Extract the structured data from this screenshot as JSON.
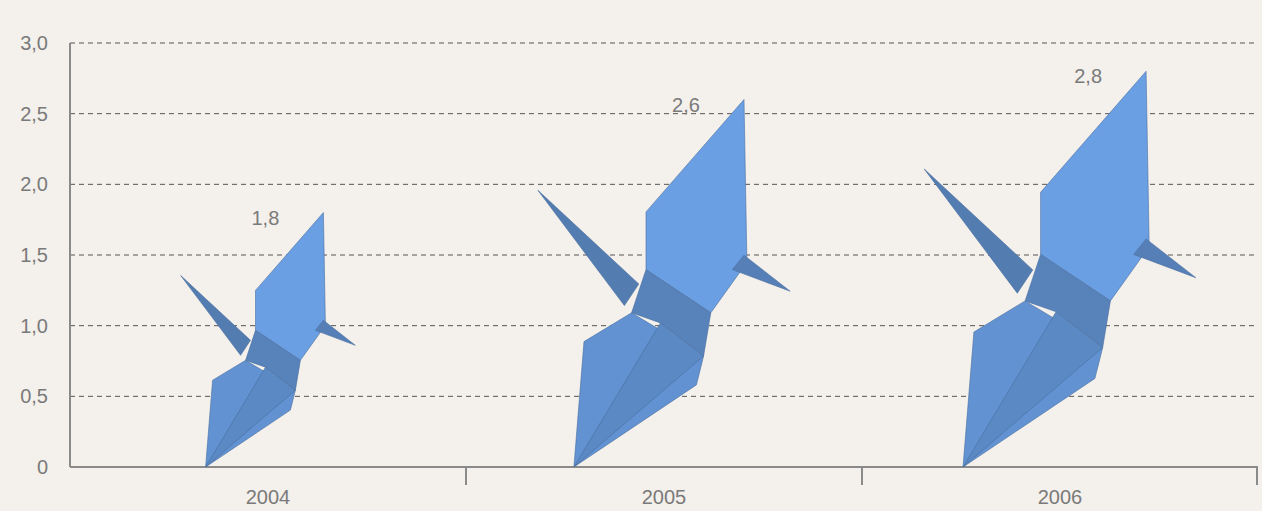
{
  "chart_data": {
    "type": "bar",
    "categories": [
      "2004",
      "2005",
      "2006"
    ],
    "values": [
      1.8,
      2.6,
      2.8
    ],
    "value_labels": [
      "1,8",
      "2,6",
      "2,8"
    ],
    "data_labels": true,
    "color": "#6a9fe3",
    "ylim": [
      0,
      3
    ],
    "yticks": [
      0,
      {
        "value": 0.5,
        "label": "0,5"
      },
      {
        "value": 1,
        "label": "1,0"
      },
      {
        "value": 1.5,
        "label": "1,5"
      },
      {
        "value": 2,
        "label": "2,0"
      },
      {
        "value": 2.5,
        "label": "2,5"
      },
      {
        "value": 3,
        "label": "3,0"
      }
    ],
    "grid": true
  }
}
